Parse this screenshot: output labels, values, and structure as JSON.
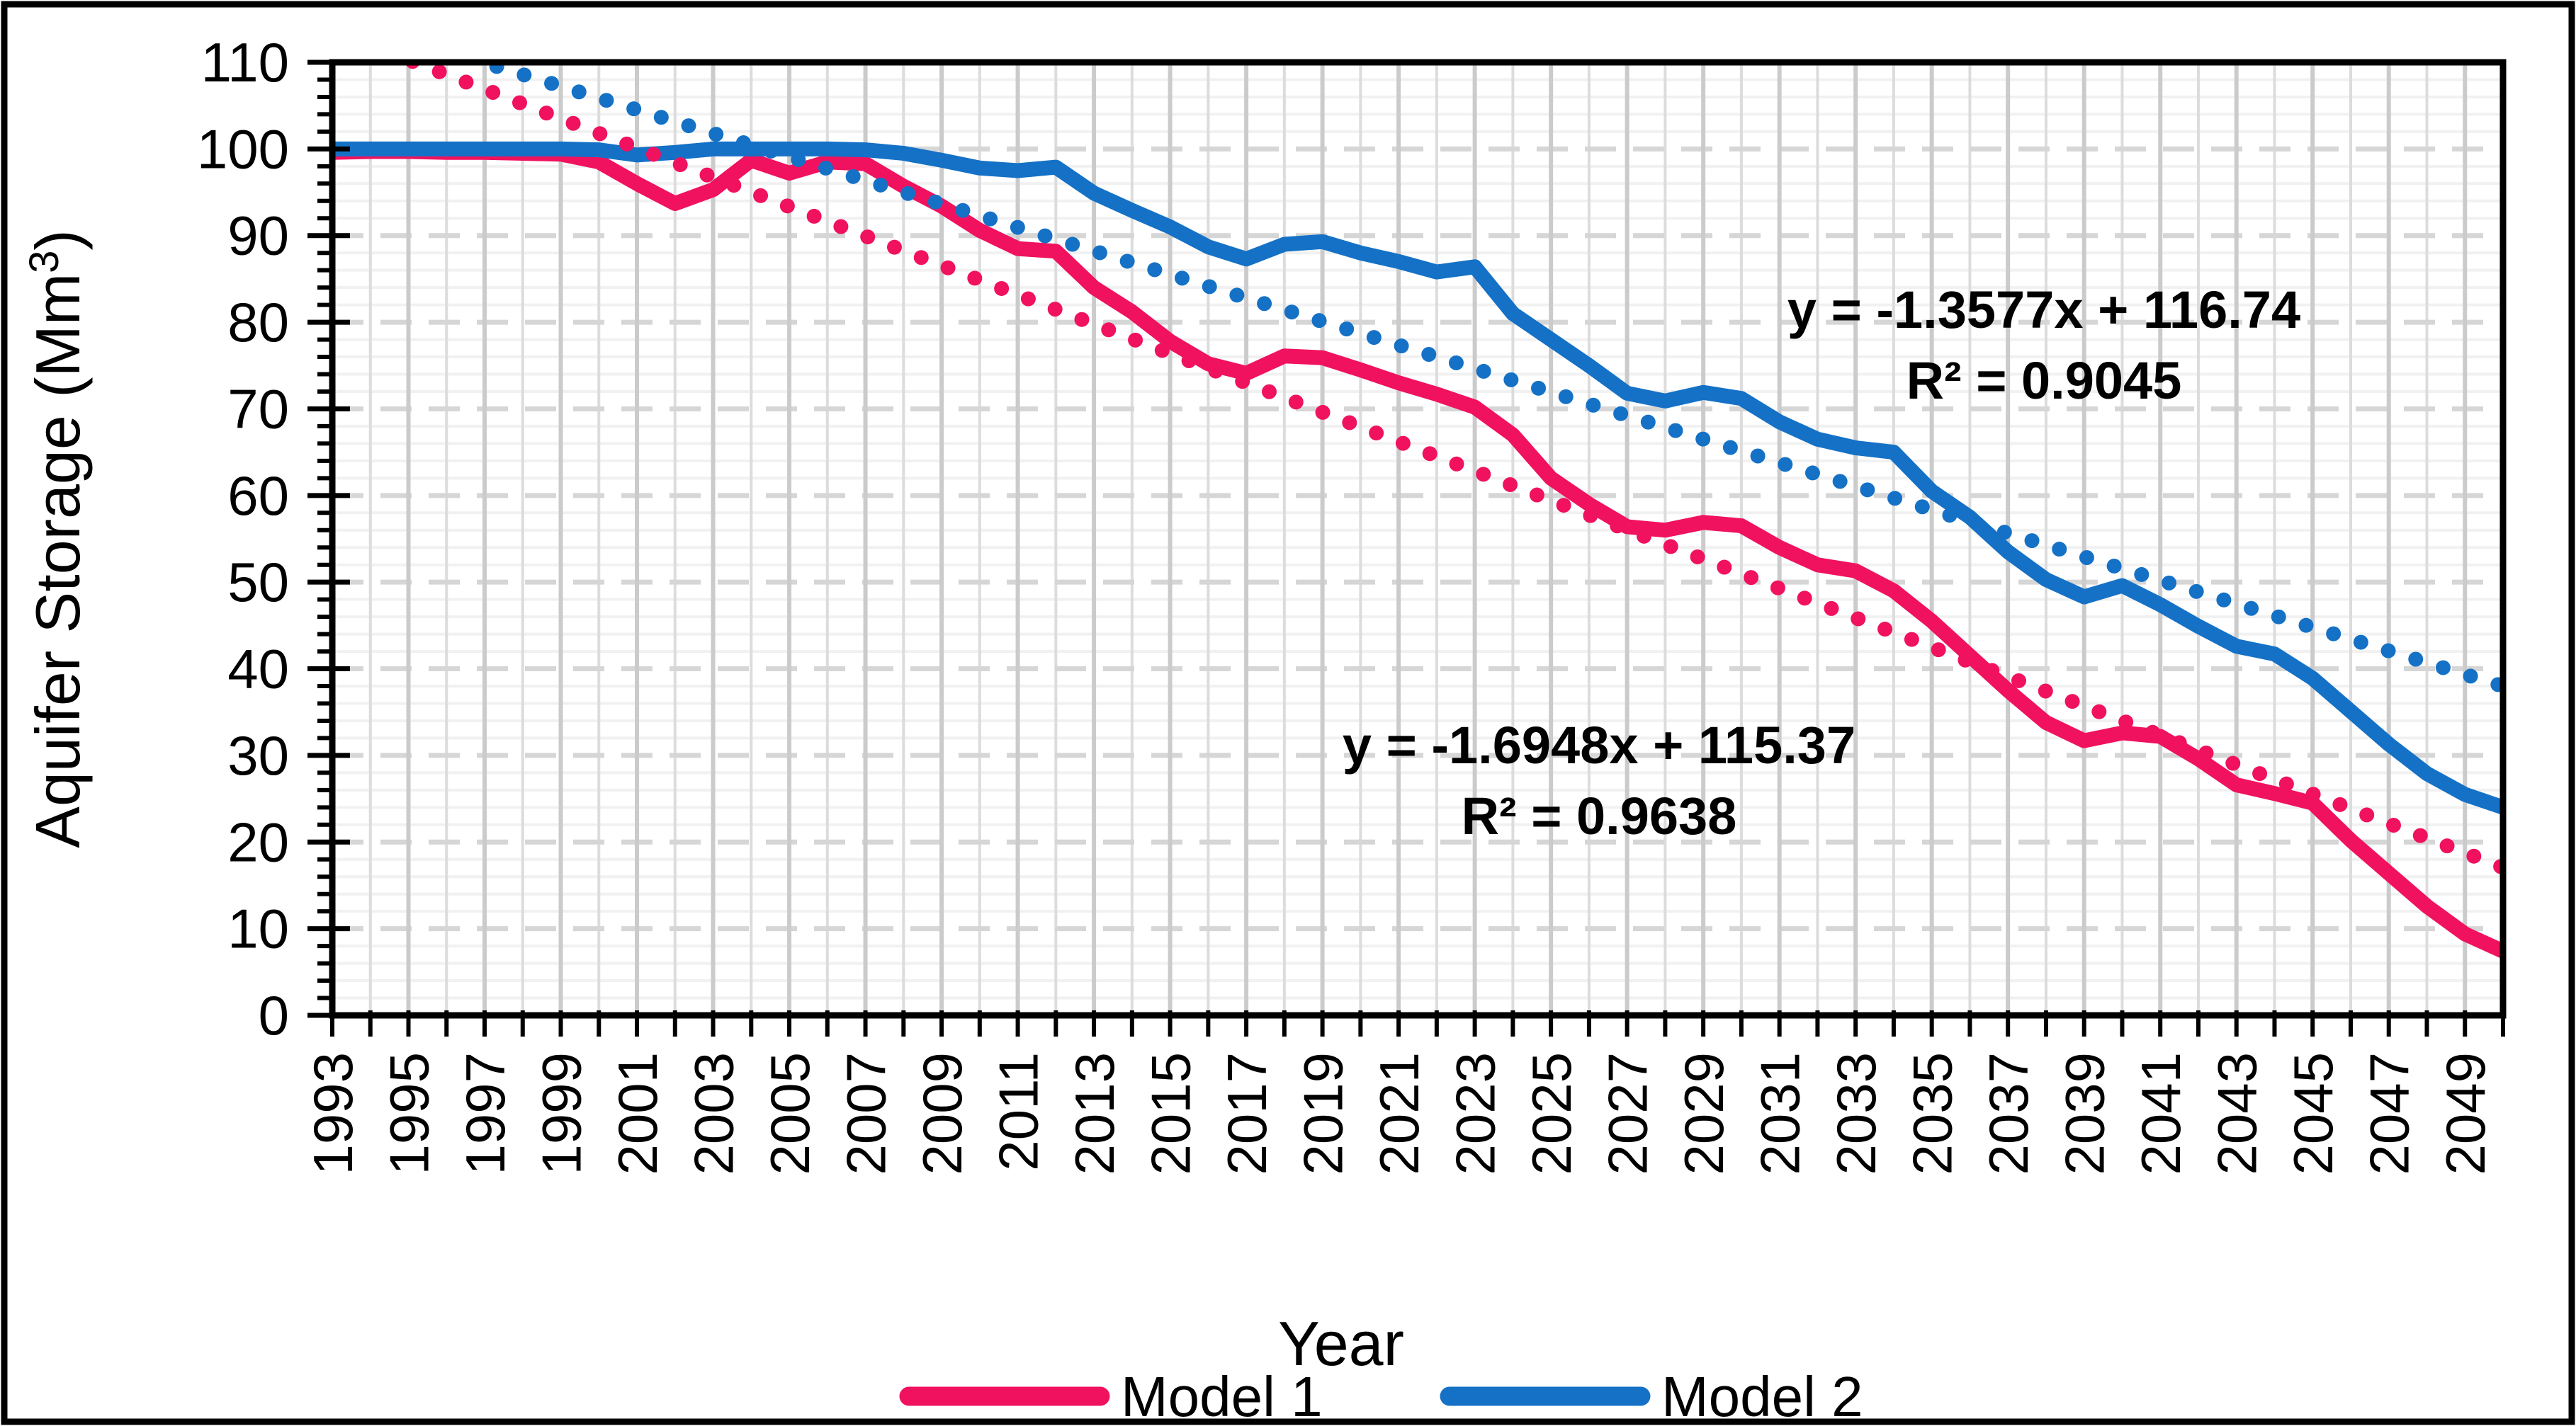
{
  "chart_data": {
    "type": "line",
    "title": "",
    "xlabel": "Year",
    "ylabel": "Aquifer Storage (Mm³)",
    "ylabel_prefix": "Aquifer Storage (Mm",
    "ylabel_sup": "3",
    "ylabel_suffix": ")",
    "x_range": [
      1993,
      2050
    ],
    "ylim": [
      0,
      110
    ],
    "grid": "fine gray minor grid, dashed major horizontal gridlines",
    "legend_position": "bottom",
    "y_ticks": [
      0,
      10,
      20,
      30,
      40,
      50,
      60,
      70,
      80,
      90,
      100,
      110
    ],
    "x_tick_labels": [
      "1993",
      "1995",
      "1997",
      "1999",
      "2001",
      "2003",
      "2005",
      "2007",
      "2009",
      "2011",
      "2013",
      "2015",
      "2017",
      "2019",
      "2021",
      "2023",
      "2025",
      "2027",
      "2029",
      "2031",
      "2033",
      "2035",
      "2037",
      "2039",
      "2041",
      "2043",
      "2045",
      "2047",
      "2049"
    ],
    "years": [
      1993,
      1994,
      1995,
      1996,
      1997,
      1998,
      1999,
      2000,
      2001,
      2002,
      2003,
      2004,
      2005,
      2006,
      2007,
      2008,
      2009,
      2010,
      2011,
      2012,
      2013,
      2014,
      2015,
      2016,
      2017,
      2018,
      2019,
      2020,
      2021,
      2022,
      2023,
      2024,
      2025,
      2026,
      2027,
      2028,
      2029,
      2030,
      2031,
      2032,
      2033,
      2034,
      2035,
      2036,
      2037,
      2038,
      2039,
      2040,
      2041,
      2042,
      2043,
      2044,
      2045,
      2046,
      2047,
      2048,
      2049,
      2050
    ],
    "series": [
      {
        "name": "Model 1",
        "color": "#F0115F",
        "style": "solid",
        "values": [
          99.6,
          99.7,
          99.7,
          99.6,
          99.6,
          99.5,
          99.4,
          98.5,
          96.0,
          93.7,
          95.3,
          98.7,
          97.2,
          98.5,
          98.3,
          95.7,
          93.4,
          90.6,
          88.5,
          88.2,
          84.0,
          81.2,
          77.8,
          75.2,
          74.1,
          76.1,
          75.9,
          74.5,
          73.0,
          71.7,
          70.2,
          67.0,
          62.0,
          59.0,
          56.4,
          56.0,
          56.9,
          56.5,
          54.0,
          52.0,
          51.3,
          49.0,
          45.5,
          41.5,
          37.5,
          33.8,
          31.7,
          32.6,
          32.2,
          29.6,
          26.6,
          25.6,
          24.5,
          20.2,
          16.4,
          12.6,
          9.4,
          7.4
        ]
      },
      {
        "name": "Model 2",
        "color": "#1471C6",
        "style": "solid",
        "values": [
          100,
          100,
          100,
          100,
          100,
          100,
          100,
          99.9,
          99.3,
          99.6,
          100,
          100,
          100,
          100,
          99.9,
          99.5,
          98.7,
          97.8,
          97.5,
          97.9,
          94.9,
          92.9,
          91.0,
          88.7,
          87.3,
          89.0,
          89.3,
          88.0,
          87.0,
          85.8,
          86.4,
          81.0,
          78.0,
          75.0,
          71.8,
          70.9,
          71.9,
          71.2,
          68.5,
          66.5,
          65.5,
          65.0,
          60.5,
          57.5,
          53.5,
          50.3,
          48.3,
          49.6,
          47.4,
          44.9,
          42.6,
          41.7,
          38.9,
          35.1,
          31.3,
          27.9,
          25.5,
          24.0
        ]
      }
    ],
    "trendlines": [
      {
        "series": "Model 1",
        "style": "dotted",
        "color": "#F0115F",
        "slope": -1.6948,
        "intercept": 115.37,
        "x_base_year": 1992,
        "equation_label": "y = -1.6948x + 115.37",
        "r2_label": "R² = 0.9638"
      },
      {
        "series": "Model 2",
        "style": "dotted",
        "color": "#1471C6",
        "slope": -1.3577,
        "intercept": 116.74,
        "x_base_year": 1992,
        "equation_label": "y = -1.3577x + 116.74",
        "r2_label": "R² = 0.9045"
      }
    ],
    "legend": [
      {
        "label": "Model 1",
        "color": "#F0115F"
      },
      {
        "label": "Model 2",
        "color": "#1471C6"
      }
    ]
  }
}
